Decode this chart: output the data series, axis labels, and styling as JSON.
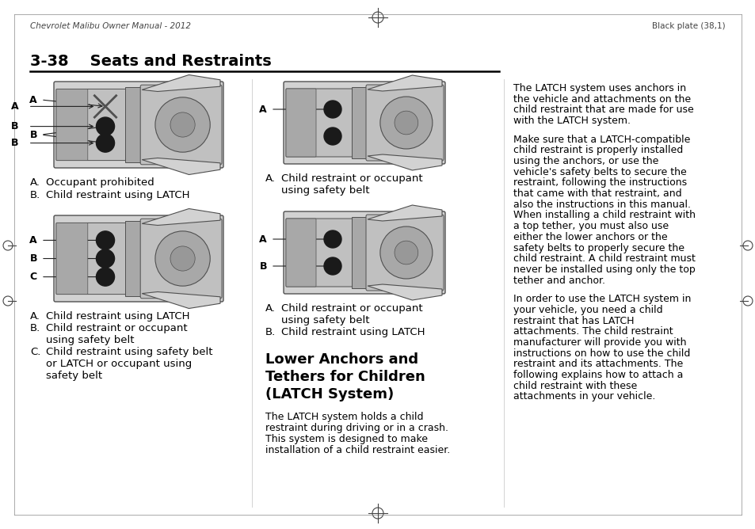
{
  "bg_color": "#ffffff",
  "header_left": "Chevrolet Malibu Owner Manual - 2012",
  "header_right": "Black plate (38,1)",
  "page_title": "3-38    Seats and Restraints",
  "col1_diag1_captions": [
    [
      "A.",
      "Occupant prohibited"
    ],
    [
      "B.",
      "Child restraint using LATCH"
    ]
  ],
  "col1_diag2_captions": [
    [
      "A.",
      "Child restraint using LATCH"
    ],
    [
      "B.",
      "Child restraint or occupant\nusing safety belt"
    ],
    [
      "C.",
      "Child restraint using safety belt\nor LATCH or occupant using\nsafety belt"
    ]
  ],
  "col2_diag1_captions": [
    [
      "A.",
      "Child restraint or occupant\nusing safety belt"
    ]
  ],
  "col2_diag2_captions": [
    [
      "A.",
      "Child restraint or occupant\nusing safety belt"
    ],
    [
      "B.",
      "Child restraint using LATCH"
    ]
  ],
  "heading_line1": "Lower Anchors and",
  "heading_line2": "Tethers for Children",
  "heading_line3": "(LATCH System)",
  "latch_para": "The LATCH system holds a child\nrestraint during driving or in a crash.\nThis system is designed to make\ninstallation of a child restraint easier.",
  "right_para1": "The LATCH system uses anchors in\nthe vehicle and attachments on the\nchild restraint that are made for use\nwith the LATCH system.",
  "right_para2": "Make sure that a LATCH-compatible\nchild restraint is properly installed\nusing the anchors, or use the\nvehicle's safety belts to secure the\nrestraint, following the instructions\nthat came with that restraint, and\nalso the instructions in this manual.\nWhen installing a child restraint with\na top tether, you must also use\neither the lower anchors or the\nsafety belts to properly secure the\nchild restraint. A child restraint must\nnever be installed using only the top\ntether and anchor.",
  "right_para3": "In order to use the LATCH system in\nyour vehicle, you need a child\nrestraint that has LATCH\nattachments. The child restraint\nmanufacturer will provide you with\ninstructions on how to use the child\nrestraint and its attachments. The\nfollowing explains how to attach a\nchild restraint with these\nattachments in your vehicle.",
  "diagram_gray_outer": "#d2d2d2",
  "diagram_gray_inner": "#c0c0c0",
  "diagram_gray_dark": "#a8a8a8",
  "diagram_circle_color": "#1a1a1a",
  "diagram_line_color": "#505050"
}
